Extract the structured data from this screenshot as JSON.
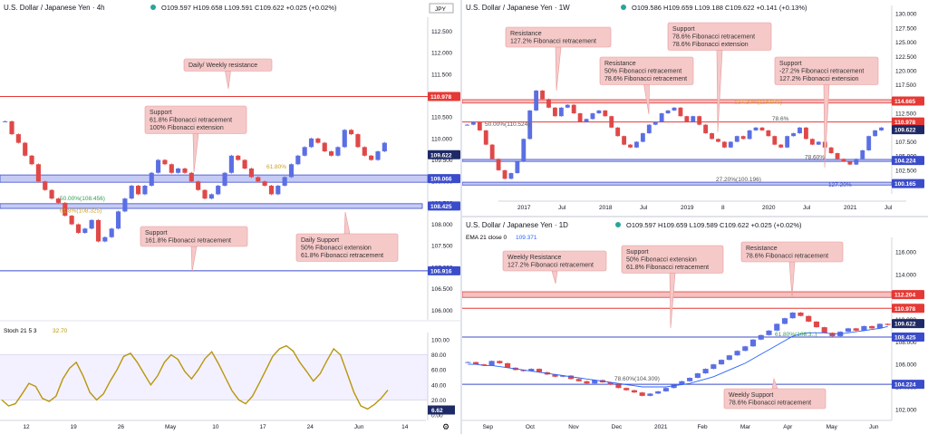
{
  "colors": {
    "up": "#5b6fe3",
    "down": "#e04848",
    "resistance": "#e53935",
    "support": "#3b4cca",
    "zone_blue": "#c5cbf5",
    "zone_red": "#f5c1c1",
    "ann_bg": "#f6c9c9",
    "ann_border": "#e59a9a",
    "stoch": "#b8960c",
    "ema": "#2962ff",
    "fib_gold": "#c9a227",
    "fib_green": "#2e9e4f"
  },
  "panel_4h": {
    "title": "U.S. Dollar / Japanese Yen · 4h",
    "ohlc": "O109.597  H109.658  L109.591  C109.622  +0.025 (+0.02%)",
    "currency_badge": "JPY",
    "y_ticks": [
      "112.500",
      "112.000",
      "111.500",
      "111.000",
      "110.500",
      "110.000",
      "109.500",
      "109.000",
      "108.500",
      "108.000",
      "107.500",
      "107.000",
      "106.500",
      "106.000"
    ],
    "x_ticks": [
      "12",
      "19",
      "26",
      "May",
      "10",
      "17",
      "24",
      "Jun",
      "14"
    ],
    "price_tags": [
      {
        "value": "110.978",
        "kind": "resistance"
      },
      {
        "value": "109.622",
        "kind": "price"
      },
      {
        "value": "109.066",
        "kind": "support"
      },
      {
        "value": "108.425",
        "kind": "support"
      },
      {
        "value": "106.916",
        "kind": "support"
      }
    ],
    "annotations": [
      {
        "lines": [
          "Daily/ Weekly resistance"
        ]
      },
      {
        "lines": [
          "Support",
          "61.8% Fibonacci retracement",
          "100% Fibonacci extension"
        ]
      },
      {
        "lines": [
          "Support",
          "161.8% Fibonacci retracement"
        ]
      },
      {
        "lines": [
          "Daily Support",
          "50% Fibonacci extension",
          "61.8% Fibonacci retracement"
        ]
      }
    ],
    "fib_labels": [
      "61.80%",
      "50.00%(108.456)",
      "61.8%(108.325)"
    ],
    "stoch": {
      "label": "Stoch 21 5 3",
      "value": "32.70",
      "y_ticks": [
        "100.00",
        "80.00",
        "60.00",
        "40.00",
        "20.00",
        "0.00"
      ],
      "tag": "6.62"
    }
  },
  "panel_1w": {
    "title": "U.S. Dollar / Japanese Yen · 1W",
    "ohlc": "O109.586  H109.659  L109.188  C109.622  +0.141 (+0.13%)",
    "y_ticks": [
      "130.000",
      "127.500",
      "125.000",
      "122.500",
      "120.000",
      "117.500",
      "115.000",
      "112.500",
      "110.000",
      "107.500",
      "105.000",
      "102.500",
      "100.000"
    ],
    "x_ticks": [
      "2017",
      "Jul",
      "2018",
      "Jul",
      "2019",
      "8",
      "2020",
      "Jul",
      "2021",
      "Jul"
    ],
    "price_tags": [
      {
        "value": "114.665",
        "kind": "resistance"
      },
      {
        "value": "110.978",
        "kind": "resistance"
      },
      {
        "value": "109.622",
        "kind": "price"
      },
      {
        "value": "104.224",
        "kind": "support"
      },
      {
        "value": "100.165",
        "kind": "support"
      }
    ],
    "annotations": [
      {
        "lines": [
          "Resistance",
          "127.2% Fibonacci retracement"
        ]
      },
      {
        "lines": [
          "Support",
          "78.6% Fibonacci retracement",
          "78.6% Fibonacci extension"
        ]
      },
      {
        "lines": [
          "Resistance",
          "50% Fibonacci retracement",
          "78.6% Fibonacci retracement"
        ]
      },
      {
        "lines": [
          "Support",
          "-27.2% Fibonacci retracement",
          "127.2% Fibonacci extension"
        ]
      }
    ],
    "fib_labels": [
      "127.20%(114.075)",
      "50.00%(110.524)",
      "78.6%",
      "78.60%",
      "27.20%(100.196)",
      "127.20%"
    ]
  },
  "panel_1d": {
    "title": "U.S. Dollar / Japanese Yen · 1D",
    "ohlc": "O109.597  H109.659  L109.589  C109.622  +0.025 (+0.02%)",
    "ema_label": "EMA 21 close 0",
    "ema_value": "109.371",
    "y_ticks": [
      "116.000",
      "114.000",
      "112.000",
      "110.000",
      "108.000",
      "106.000",
      "104.000",
      "102.000"
    ],
    "x_ticks": [
      "Sep",
      "Oct",
      "Nov",
      "Dec",
      "2021",
      "Feb",
      "Mar",
      "Apr",
      "May",
      "Jun"
    ],
    "price_tags": [
      {
        "value": "112.204",
        "kind": "resistance"
      },
      {
        "value": "110.978",
        "kind": "resistance"
      },
      {
        "value": "109.622",
        "kind": "price"
      },
      {
        "value": "108.425",
        "kind": "support"
      },
      {
        "value": "104.224",
        "kind": "support"
      }
    ],
    "annotations": [
      {
        "lines": [
          "Weekly Resistance",
          "127.2% Fibonacci retracement"
        ]
      },
      {
        "lines": [
          "Support",
          "50% Fibonacci extension",
          "61.8% Fibonacci retracement"
        ]
      },
      {
        "lines": [
          "Resistance",
          "78.6% Fibonacci retracement"
        ]
      },
      {
        "lines": [
          "Weekly Support",
          "78.6% Fibonacci retracement"
        ]
      }
    ],
    "fib_labels": [
      "78.60%(104.309)",
      "61.80%(108.3..)"
    ]
  },
  "chart_data": [
    {
      "type": "candlestick",
      "title": "U.S. Dollar / Japanese Yen · 4h",
      "ylim": [
        105.9,
        112.7
      ],
      "close_series": [
        110.4,
        110.1,
        109.9,
        109.6,
        109.4,
        109.0,
        108.8,
        108.6,
        108.5,
        108.2,
        108.0,
        107.8,
        107.9,
        108.1,
        107.6,
        107.7,
        107.9,
        108.3,
        108.6,
        108.9,
        108.7,
        108.9,
        109.2,
        109.5,
        109.4,
        109.2,
        109.3,
        109.2,
        109.0,
        108.8,
        108.6,
        108.7,
        108.9,
        109.2,
        109.6,
        109.5,
        109.3,
        109.1,
        109.0,
        108.9,
        108.7,
        108.9,
        109.1,
        109.4,
        109.6,
        109.8,
        110.0,
        109.9,
        109.7,
        109.6,
        109.8,
        110.2,
        110.1,
        109.8,
        109.6,
        109.5,
        109.7,
        109.9
      ],
      "fib_levels": [
        {
          "label": "61.80%",
          "value": 109.06
        },
        {
          "label": "50.00%",
          "value": 108.456
        },
        {
          "label": "61.8%",
          "value": 108.325
        }
      ],
      "stochastic": {
        "k_period": 21,
        "smooth": 5,
        "d": 3,
        "ylim": [
          0,
          100
        ],
        "values": [
          20,
          12,
          15,
          28,
          42,
          38,
          22,
          18,
          25,
          48,
          62,
          70,
          52,
          30,
          20,
          28,
          45,
          60,
          78,
          82,
          70,
          55,
          40,
          52,
          70,
          80,
          74,
          58,
          48,
          60,
          75,
          84,
          68,
          50,
          32,
          20,
          15,
          25,
          42,
          60,
          78,
          88,
          92,
          85,
          70,
          58,
          45,
          55,
          72,
          88,
          80,
          55,
          30,
          12,
          8,
          14,
          22,
          33
        ]
      }
    },
    {
      "type": "candlestick",
      "title": "U.S. Dollar / Japanese Yen · 1W",
      "ylim": [
        99.3,
        130.5
      ],
      "close_series": [
        110.5,
        111.0,
        109.5,
        107.0,
        104.5,
        102.5,
        101.0,
        102.0,
        104.0,
        108.0,
        113.0,
        116.5,
        115.0,
        113.5,
        112.0,
        113.5,
        114.0,
        112.5,
        111.0,
        111.5,
        112.5,
        113.0,
        112.0,
        110.0,
        108.5,
        107.0,
        106.5,
        107.5,
        109.0,
        110.5,
        111.0,
        112.5,
        113.0,
        113.5,
        112.0,
        111.0,
        112.0,
        110.5,
        109.0,
        108.0,
        107.5,
        106.5,
        107.5,
        108.5,
        108.0,
        109.5,
        110.0,
        109.5,
        108.5,
        107.0,
        106.5,
        108.5,
        109.0,
        110.0,
        108.0,
        107.0,
        107.5,
        106.5,
        105.5,
        104.5,
        104.0,
        103.5,
        104.5,
        106.0,
        108.5,
        109.5,
        110.0
      ],
      "fib_levels": [
        {
          "label": "127.20%",
          "value": 114.075
        },
        {
          "label": "50.00%",
          "value": 110.524
        },
        {
          "label": "78.60%",
          "value": 104.224
        },
        {
          "label": "27.20%",
          "value": 100.196
        }
      ]
    },
    {
      "type": "candlestick",
      "title": "U.S. Dollar / Japanese Yen · 1D",
      "ylim": [
        101.5,
        116.8
      ],
      "close_series": [
        106.2,
        106.0,
        105.9,
        106.3,
        106.1,
        105.7,
        105.5,
        105.4,
        105.6,
        105.3,
        105.1,
        104.9,
        105.0,
        104.7,
        104.5,
        104.3,
        104.6,
        104.4,
        104.2,
        103.9,
        103.7,
        103.5,
        103.2,
        103.4,
        103.6,
        103.9,
        104.2,
        104.5,
        104.8,
        105.2,
        105.6,
        106.0,
        106.4,
        106.8,
        107.2,
        107.6,
        108.2,
        108.6,
        109.0,
        109.6,
        110.1,
        110.6,
        110.3,
        109.8,
        109.3,
        108.8,
        108.5,
        108.9,
        109.2,
        109.0,
        109.4,
        109.2,
        109.6,
        109.5
      ],
      "ema_21": [
        106.0,
        106.0,
        105.9,
        105.9,
        105.8,
        105.7,
        105.6,
        105.5,
        105.4,
        105.3,
        105.2,
        105.1,
        105.0,
        104.9,
        104.8,
        104.7,
        104.6,
        104.5,
        104.4,
        104.3,
        104.2,
        104.1,
        104.0,
        104.0,
        104.0,
        104.0,
        104.1,
        104.2,
        104.3,
        104.5,
        104.7,
        104.9,
        105.2,
        105.5,
        105.8,
        106.1,
        106.5,
        106.9,
        107.3,
        107.7,
        108.1,
        108.5,
        108.7,
        108.8,
        108.8,
        108.8,
        108.7,
        108.7,
        108.8,
        108.9,
        109.0,
        109.1,
        109.2,
        109.37
      ],
      "fib_levels": [
        {
          "label": "78.60%",
          "value": 104.309
        },
        {
          "label": "61.80%",
          "value": 108.3
        }
      ]
    }
  ]
}
